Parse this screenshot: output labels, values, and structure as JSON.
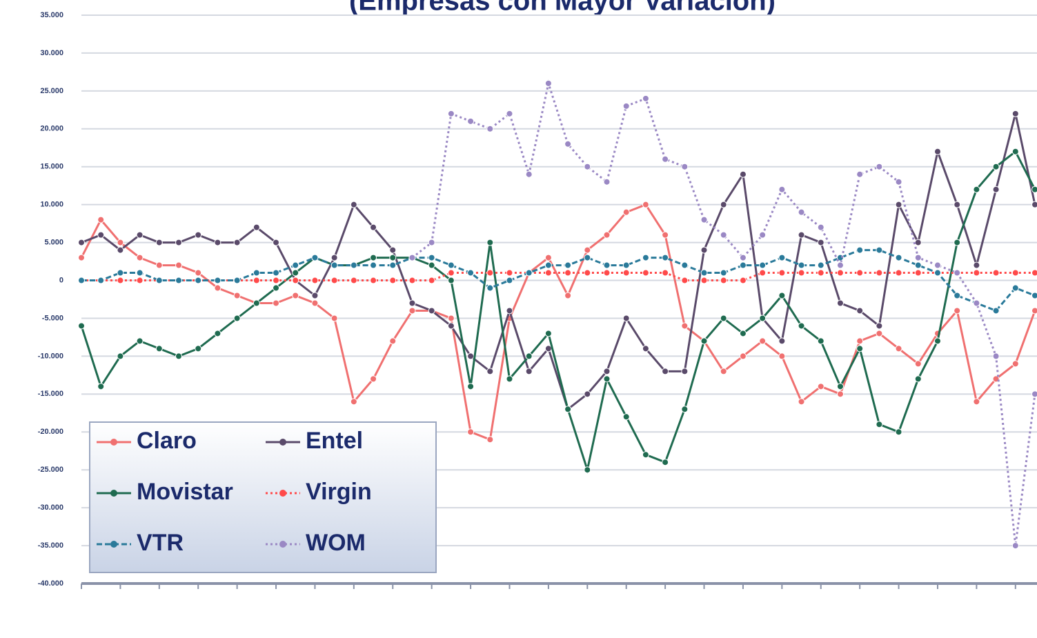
{
  "chart_data": {
    "type": "line",
    "title": "(Empresas con Mayor Variación)",
    "categories": [
      null,
      null,
      null,
      null,
      null,
      null,
      null,
      null,
      null,
      null,
      null,
      null,
      null,
      null,
      null,
      null,
      null,
      null,
      null,
      null,
      null,
      null,
      null,
      null,
      null,
      null,
      null,
      null,
      null,
      null,
      null,
      null,
      null,
      null,
      null,
      null,
      null,
      null,
      null,
      null,
      null,
      null,
      null,
      null,
      null,
      null,
      null,
      null,
      null,
      null
    ],
    "ylim": [
      -40000,
      35000
    ],
    "yticks": [
      {
        "value": -40000,
        "label": "-40.000"
      },
      {
        "value": -35000,
        "label": "-35.000"
      },
      {
        "value": -30000,
        "label": "-30.000"
      },
      {
        "value": -25000,
        "label": "-25.000"
      },
      {
        "value": -20000,
        "label": "-20.000"
      },
      {
        "value": -15000,
        "label": "-15.000"
      },
      {
        "value": -10000,
        "label": "-10.000"
      },
      {
        "value": -5000,
        "label": "-5.000"
      },
      0,
      {
        "value": 5000,
        "label": "5.000"
      },
      {
        "value": 10000,
        "label": "10.000"
      },
      {
        "value": 15000,
        "label": "15.000"
      },
      {
        "value": 20000,
        "label": "20.000"
      },
      {
        "value": 25000,
        "label": "25.000"
      },
      {
        "value": 30000,
        "label": "30.000"
      },
      {
        "value": 35000,
        "label": "35.000"
      }
    ],
    "grid": true,
    "legend": "lower left",
    "series": [
      {
        "name": "Claro",
        "color": "#f07070",
        "line_style": "solid",
        "values": [
          3000,
          8000,
          5000,
          3000,
          2000,
          2000,
          1000,
          -1000,
          -2000,
          -3000,
          -3000,
          -2000,
          -3000,
          -5000,
          -16000,
          -13000,
          -8000,
          -4000,
          -4000,
          -5000,
          -20000,
          -21000,
          -5000,
          1000,
          3000,
          -2000,
          4000,
          6000,
          9000,
          10000,
          6000,
          -6000,
          -8000,
          -12000,
          -10000,
          -8000,
          -10000,
          -16000,
          -14000,
          -15000,
          -8000,
          -7000,
          -9000,
          -11000,
          -7000,
          -4000,
          -16000,
          -13000,
          -11000,
          -4000
        ]
      },
      {
        "name": "Entel",
        "color": "#5a4a6a",
        "line_style": "solid",
        "values": [
          5000,
          6000,
          4000,
          6000,
          5000,
          5000,
          6000,
          5000,
          5000,
          7000,
          5000,
          0,
          -2000,
          3000,
          10000,
          7000,
          4000,
          -3000,
          -4000,
          -6000,
          -10000,
          -12000,
          -4000,
          -12000,
          -9000,
          -17000,
          -15000,
          -12000,
          -5000,
          -9000,
          -12000,
          -12000,
          4000,
          10000,
          14000,
          -5000,
          -8000,
          6000,
          5000,
          -3000,
          -4000,
          -6000,
          10000,
          5000,
          17000,
          10000,
          2000,
          12000,
          22000,
          10000
        ]
      },
      {
        "name": "Movistar",
        "color": "#1f6b50",
        "line_style": "solid",
        "values": [
          -6000,
          -14000,
          -10000,
          -8000,
          -9000,
          -10000,
          -9000,
          -7000,
          -5000,
          -3000,
          -1000,
          1000,
          3000,
          2000,
          2000,
          3000,
          3000,
          3000,
          2000,
          0,
          -14000,
          5000,
          -13000,
          -10000,
          -7000,
          -17000,
          -25000,
          -13000,
          -18000,
          -23000,
          -24000,
          -17000,
          -8000,
          -5000,
          -7000,
          -5000,
          -2000,
          -6000,
          -8000,
          -14000,
          -9000,
          -19000,
          -20000,
          -13000,
          -8000,
          5000,
          12000,
          15000,
          17000,
          12000
        ]
      },
      {
        "name": "Virgin",
        "color": "#ff4a4a",
        "line_style": "dotted",
        "values": [
          0,
          0,
          0,
          0,
          0,
          0,
          0,
          0,
          0,
          0,
          0,
          0,
          0,
          0,
          0,
          0,
          0,
          0,
          0,
          1000,
          1000,
          1000,
          1000,
          1000,
          1000,
          1000,
          1000,
          1000,
          1000,
          1000,
          1000,
          0,
          0,
          0,
          0,
          1000,
          1000,
          1000,
          1000,
          1000,
          1000,
          1000,
          1000,
          1000,
          1000,
          1000,
          1000,
          1000,
          1000,
          1000
        ]
      },
      {
        "name": "VTR",
        "color": "#2a7a9a",
        "line_style": "dashed",
        "values": [
          0,
          0,
          1000,
          1000,
          0,
          0,
          0,
          0,
          0,
          1000,
          1000,
          2000,
          3000,
          2000,
          2000,
          2000,
          2000,
          3000,
          3000,
          2000,
          1000,
          -1000,
          0,
          1000,
          2000,
          2000,
          3000,
          2000,
          2000,
          3000,
          3000,
          2000,
          1000,
          1000,
          2000,
          2000,
          3000,
          2000,
          2000,
          3000,
          4000,
          4000,
          3000,
          2000,
          1000,
          -2000,
          -3000,
          -4000,
          -1000,
          -2000
        ]
      },
      {
        "name": "WOM",
        "color": "#9a88c4",
        "line_style": "dotted",
        "values": [
          null,
          null,
          null,
          null,
          null,
          null,
          null,
          null,
          null,
          null,
          null,
          null,
          null,
          null,
          null,
          null,
          null,
          3000,
          5000,
          22000,
          21000,
          20000,
          22000,
          14000,
          26000,
          18000,
          15000,
          13000,
          23000,
          24000,
          16000,
          15000,
          8000,
          6000,
          3000,
          6000,
          12000,
          9000,
          7000,
          2000,
          14000,
          15000,
          13000,
          3000,
          2000,
          1000,
          -3000,
          -10000,
          -35000,
          -15000
        ]
      }
    ]
  }
}
